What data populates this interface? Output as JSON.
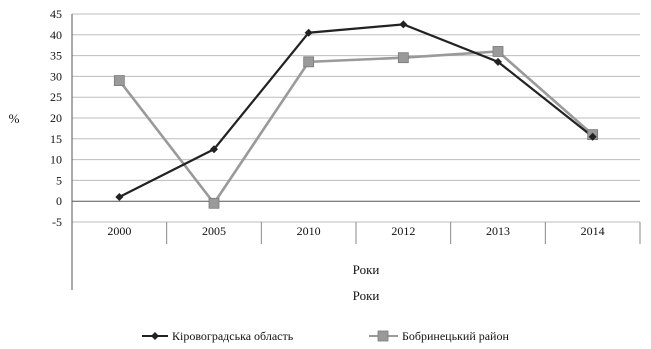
{
  "chart_data": {
    "type": "line",
    "categories": [
      "2000",
      "2005",
      "2010",
      "2012",
      "2013",
      "2014"
    ],
    "series": [
      {
        "name": "Кіровоградська область",
        "values": [
          1,
          12.5,
          40.5,
          42.5,
          33.5,
          15.5
        ],
        "color": "#222222",
        "marker": "diamond"
      },
      {
        "name": "Бобринецький район",
        "values": [
          29,
          -0.5,
          33.5,
          34.5,
          36,
          16
        ],
        "color": "#9a9a9a",
        "marker": "square"
      }
    ],
    "ylabel": "%",
    "xlabel": "Роки",
    "xlabel_repeat": "Роки",
    "ylim": [
      -5,
      45
    ],
    "ytick_step": 5,
    "grid": true,
    "legend": "bottom"
  }
}
